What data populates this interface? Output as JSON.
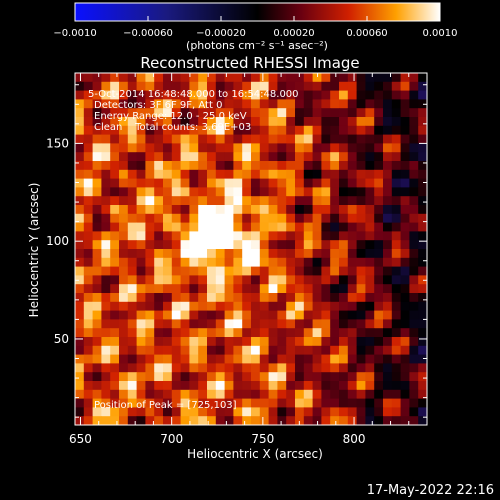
{
  "chart_data": {
    "type": "heatmap",
    "title": "Reconstructed RHESSI Image",
    "xlabel": "Heliocentric X (arcsec)",
    "ylabel": "Heliocentric Y (arcsec)",
    "xlim": [
      647,
      840
    ],
    "ylim": [
      6,
      186
    ],
    "x_ticks": [
      650,
      700,
      750,
      800
    ],
    "y_ticks": [
      50,
      100,
      150
    ],
    "colorbar": {
      "range": [
        -0.001,
        0.001
      ],
      "tick_values": [
        -0.001,
        -0.0006,
        -0.0002,
        0.0002,
        0.0006,
        0.001
      ],
      "tick_labels": [
        "−0.0010",
        "−0.00060",
        "−0.00020",
        "0.00020",
        "0.00060",
        "0.0010"
      ],
      "unit_label": "(photons cm⁻² s⁻¹ asec⁻²)"
    },
    "annotations": {
      "time": "5-Oct-2014 16:48:48.000 to 16:54:48.000",
      "detectors": "Detectors: 3F 6F 9F, Att 0",
      "energy": "Energy Range: 12.0 - 25.0 keV",
      "method": "Clean    Total counts: 3.69E+03",
      "peak": "Position of Peak = [725,103]"
    },
    "peak": {
      "x": 725,
      "y": 103
    },
    "timestamp": "17-May-2022 22:16",
    "colormap": "blue-black-red-yellow-white",
    "colors": {
      "background": "#000000",
      "text": "#ffffff",
      "low": "#2020ff",
      "mid": "#000000",
      "high": "#ffffff"
    }
  }
}
